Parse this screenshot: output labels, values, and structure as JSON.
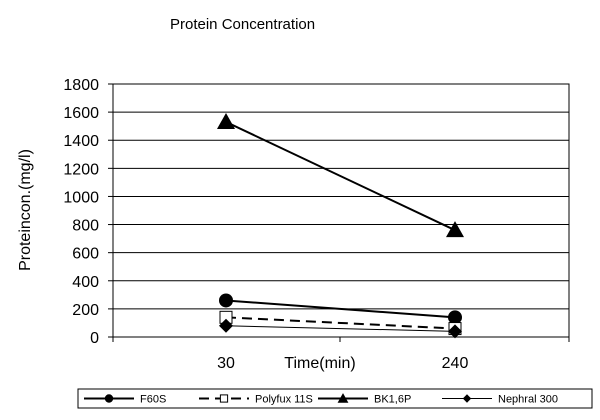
{
  "chart_data": {
    "type": "line",
    "title": "Protein Concentration",
    "xlabel": "Time(min)",
    "ylabel": "Proteincon.(mg/l)",
    "categories": [
      "30",
      "240"
    ],
    "ylim": [
      0,
      1800
    ],
    "yticks": [
      0,
      200,
      400,
      600,
      800,
      1000,
      1200,
      1400,
      1600,
      1800
    ],
    "grid": "horizontal",
    "legend_position": "bottom",
    "series": [
      {
        "name": "F60S",
        "values": [
          260,
          140
        ],
        "marker": "circle",
        "line": "solid"
      },
      {
        "name": "Polyfux 11S",
        "values": [
          140,
          60
        ],
        "marker": "square-open",
        "line": "dashed"
      },
      {
        "name": "BK1,6P",
        "values": [
          1530,
          760
        ],
        "marker": "triangle",
        "line": "solid"
      },
      {
        "name": "Nephral 300",
        "values": [
          80,
          40
        ],
        "marker": "diamond",
        "line": "thin"
      }
    ]
  }
}
